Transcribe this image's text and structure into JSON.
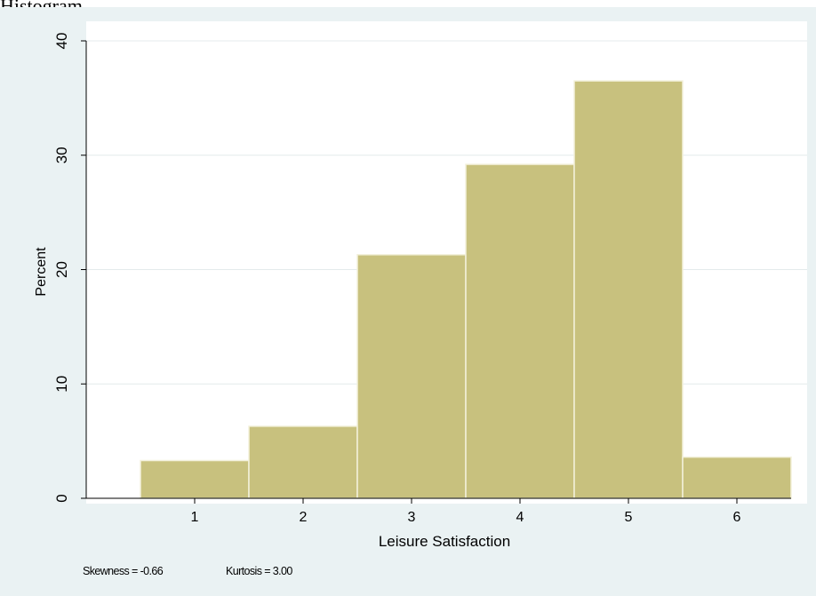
{
  "caption": "Histogram",
  "notes": {
    "skewness": "Skewness = -0.66",
    "kurtosis": "Kurtosis = 3.00"
  },
  "colors": {
    "background": "#eaf2f3",
    "plot_area": "#ffffff",
    "bar_fill": "#c8c17e",
    "bar_edge": "#f3f1dc",
    "gridline": "#e4ebec"
  },
  "chart_data": {
    "type": "bar",
    "title": "",
    "xlabel": "Leisure Satisfaction",
    "ylabel": "Percent",
    "categories": [
      "1",
      "2",
      "3",
      "4",
      "5",
      "6"
    ],
    "values": [
      3.3,
      6.3,
      21.3,
      29.2,
      36.5,
      3.6
    ],
    "ylim": [
      0,
      40
    ],
    "yticks": [
      0,
      10,
      20,
      30,
      40
    ],
    "ytick_labels": [
      "0",
      "10",
      "20",
      "30",
      "40"
    ],
    "xlim": [
      0,
      6.5
    ],
    "grid": true,
    "legend": "none"
  }
}
